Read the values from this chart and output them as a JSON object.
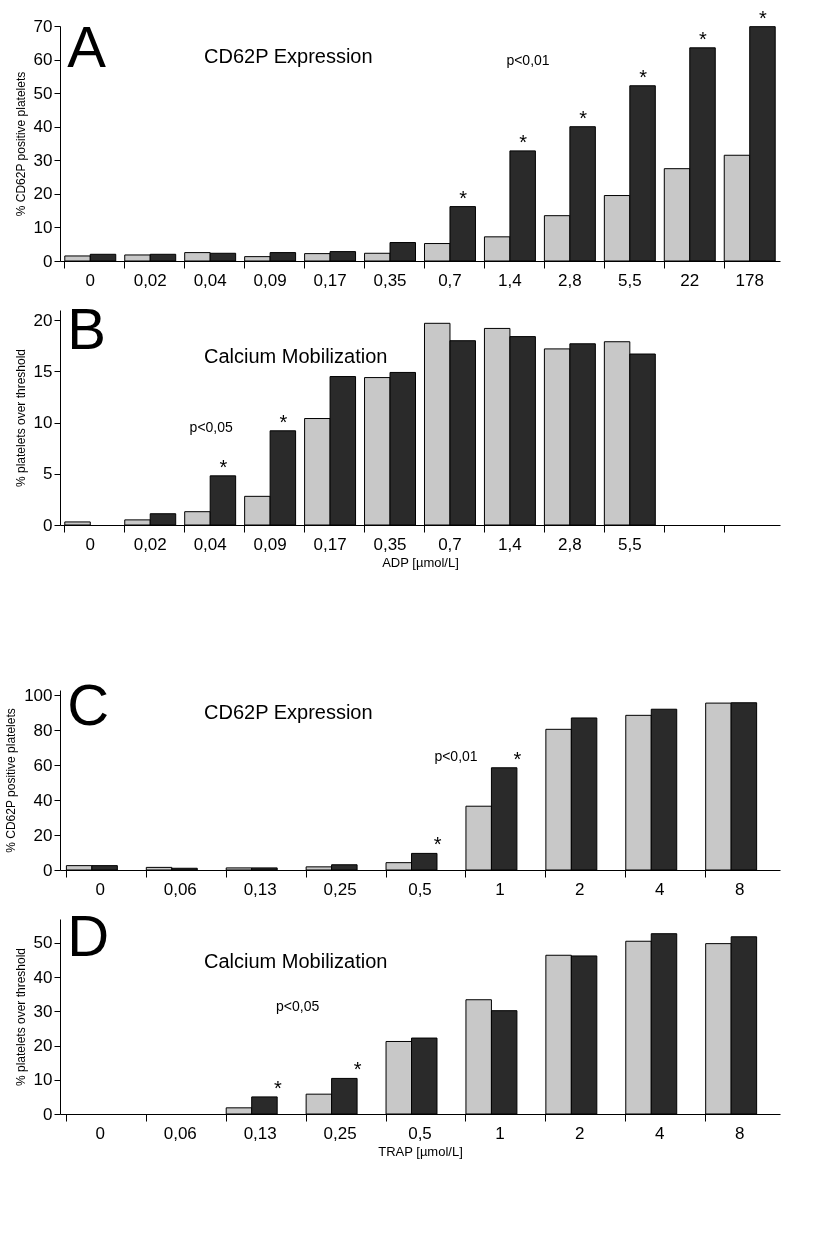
{
  "chart_data": [
    {
      "type": "bar",
      "title": "CD62P Expression",
      "ylabel": "% CD62P positive platelets",
      "categories": [
        "0",
        "0,02",
        "0,04",
        "0,09",
        "0,17",
        "0,35",
        "0,7",
        "1,4",
        "2,8",
        "5,5",
        "22",
        "178"
      ],
      "series": [
        {
          "color": "#c8c8c8",
          "values": [
            1.5,
            1.8,
            2.5,
            1.3,
            2.2,
            2.3,
            5.2,
            7.2,
            13.5,
            19.5,
            27.5,
            31.5
          ]
        },
        {
          "color": "#2a2a2a",
          "values": [
            2,
            2,
            2.3,
            2.5,
            2.8,
            5.5,
            16.2,
            32.8,
            40,
            52.2,
            63.5,
            69.8
          ]
        }
      ],
      "ylim": [
        0,
        70
      ],
      "yticks": [
        0,
        10,
        20,
        30,
        40,
        50,
        60,
        70
      ],
      "annotations": [
        "A",
        "p<0,01",
        {
          "text": "*",
          "x": "0,7",
          "y": 16.2
        },
        {
          "text": "*",
          "x": "1,4",
          "y": 32.8
        },
        {
          "text": "*",
          "x": "2,8",
          "y": 40
        },
        {
          "text": "*",
          "x": "5,5",
          "y": 52.2
        },
        {
          "text": "*",
          "x": "22",
          "y": 63.5
        },
        {
          "text": "*",
          "x": "178",
          "y": 69.8
        }
      ]
    },
    {
      "type": "bar",
      "title": "Calcium Mobilization",
      "ylabel": "% platelets over threshold",
      "xlabel": "ADP [µmol/L]",
      "categories": [
        "0",
        "0,02",
        "0,04",
        "0,09",
        "0,17",
        "0,35",
        "0,7",
        "1,4",
        "2,8",
        "5,5",
        null,
        null
      ],
      "series": [
        {
          "color": "#c8c8c8",
          "values": [
            0.3,
            0.5,
            1.3,
            2.8,
            10.4,
            14.4,
            19.7,
            19.2,
            17.2,
            17.9,
            null,
            null
          ]
        },
        {
          "color": "#2a2a2a",
          "values": [
            null,
            1.1,
            4.8,
            9.2,
            14.5,
            14.9,
            18,
            18.4,
            17.7,
            16.7,
            null,
            null
          ]
        }
      ],
      "ylim": [
        0,
        21
      ],
      "yticks": [
        0,
        5,
        10,
        15,
        20
      ],
      "annotations": [
        "B",
        "p<0,05",
        {
          "text": "*",
          "x": "0,04",
          "y": 4.8
        },
        {
          "text": "*",
          "x": "0,09",
          "y": 9.2
        }
      ]
    },
    {
      "type": "bar",
      "title": "CD62P Expression",
      "ylabel": "% CD62P positive platelets",
      "categories": [
        "0",
        "0,06",
        "0,13",
        "0,25",
        "0,5",
        "1",
        "2",
        "4",
        "8"
      ],
      "series": [
        {
          "color": "#c8c8c8",
          "values": [
            2.5,
            1.5,
            1.2,
            1.8,
            4.2,
            36.5,
            80.5,
            88.5,
            95.5
          ]
        },
        {
          "color": "#2a2a2a",
          "values": [
            2.5,
            1,
            1.2,
            3,
            9.5,
            58.5,
            87,
            92,
            95.7
          ]
        }
      ],
      "ylim": [
        0,
        103
      ],
      "yticks": [
        0,
        20,
        40,
        60,
        80,
        100
      ],
      "annotations": [
        "C",
        "p<0,01",
        {
          "text": "*",
          "x": "0,5",
          "y": 9.5
        },
        {
          "text": "*",
          "x": "1",
          "y": 58.5
        }
      ]
    },
    {
      "type": "bar",
      "title": "Calcium Mobilization",
      "ylabel": "% platelets over threshold",
      "xlabel": "TRAP [µmol/L]",
      "categories": [
        "0",
        "0,06",
        "0,13",
        "0,25",
        "0,5",
        "1",
        "2",
        "4",
        "8"
      ],
      "series": [
        {
          "color": "#c8c8c8",
          "values": [
            null,
            null,
            1.8,
            5.8,
            21.2,
            33.4,
            46.4,
            50.5,
            49.8
          ]
        },
        {
          "color": "#2a2a2a",
          "values": [
            null,
            null,
            5,
            10.4,
            22.2,
            30.2,
            46.2,
            52.7,
            51.8
          ]
        }
      ],
      "ylim": [
        0,
        57
      ],
      "yticks": [
        0,
        10,
        20,
        30,
        40,
        50
      ],
      "annotations": [
        "D",
        "p<0,05",
        {
          "text": "*",
          "x": "0,13",
          "y": 5
        },
        {
          "text": "*",
          "x": "0,25",
          "y": 10.4
        }
      ]
    }
  ]
}
